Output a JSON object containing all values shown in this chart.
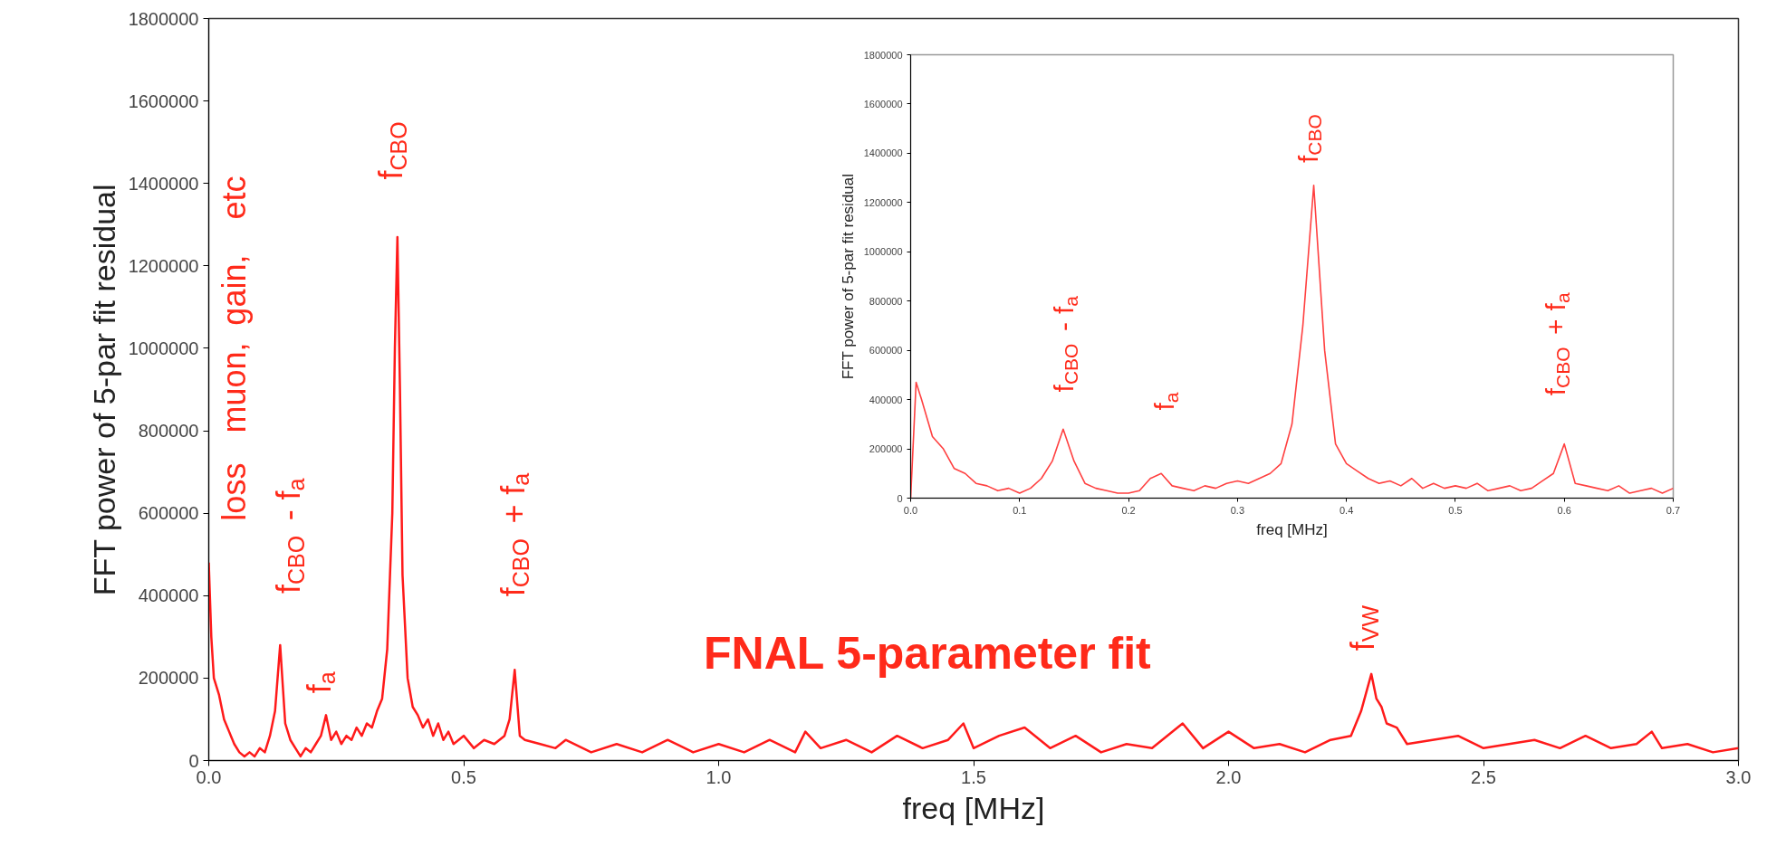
{
  "chart_data": [
    {
      "type": "line",
      "xlabel": "freq [MHz]",
      "ylabel": "FFT power of 5-par fit residual",
      "xlim": [
        0,
        3
      ],
      "ylim": [
        0,
        1800000
      ],
      "xticks": [
        {
          "value": 0,
          "label": "0.0"
        },
        0.5,
        {
          "value": 1,
          "label": "1.0"
        },
        1.5,
        {
          "value": 2,
          "label": "2.0"
        },
        2.5,
        {
          "value": 3,
          "label": "3.0"
        }
      ],
      "yticks": [
        0,
        200000,
        400000,
        600000,
        800000,
        1000000,
        1200000,
        1400000,
        1600000,
        1800000
      ],
      "grid": false,
      "line_style": "solid",
      "marker": "none",
      "series": [
        {
          "color": "#ff1a1a",
          "x": [
            0,
            0.005,
            0.01,
            0.02,
            0.03,
            0.04,
            0.05,
            0.06,
            0.07,
            0.08,
            0.09,
            0.1,
            0.11,
            0.12,
            0.13,
            0.14,
            0.15,
            0.16,
            0.17,
            0.18,
            0.19,
            0.2,
            0.21,
            0.22,
            0.23,
            0.24,
            0.25,
            0.26,
            0.27,
            0.28,
            0.29,
            0.3,
            0.31,
            0.32,
            0.33,
            0.34,
            0.35,
            0.36,
            0.365,
            0.37,
            0.375,
            0.38,
            0.39,
            0.4,
            0.41,
            0.42,
            0.43,
            0.44,
            0.45,
            0.46,
            0.47,
            0.48,
            0.5,
            0.52,
            0.54,
            0.56,
            0.58,
            0.59,
            0.6,
            0.61,
            0.62,
            0.65,
            0.68,
            0.7,
            0.75,
            0.8,
            0.85,
            0.9,
            0.95,
            1.0,
            1.05,
            1.1,
            1.15,
            1.17,
            1.2,
            1.25,
            1.3,
            1.35,
            1.4,
            1.45,
            1.48,
            1.5,
            1.55,
            1.6,
            1.65,
            1.7,
            1.75,
            1.8,
            1.85,
            1.9,
            1.91,
            1.95,
            2.0,
            2.05,
            2.1,
            2.15,
            2.2,
            2.24,
            2.26,
            2.28,
            2.29,
            2.3,
            2.31,
            2.33,
            2.35,
            2.4,
            2.45,
            2.5,
            2.55,
            2.6,
            2.65,
            2.7,
            2.75,
            2.8,
            2.83,
            2.85,
            2.9,
            2.95,
            3.0
          ],
          "values": [
            480000,
            300000,
            200000,
            160000,
            100000,
            70000,
            40000,
            20000,
            10000,
            20000,
            10000,
            30000,
            20000,
            60000,
            120000,
            280000,
            90000,
            50000,
            30000,
            10000,
            30000,
            20000,
            40000,
            60000,
            110000,
            50000,
            70000,
            40000,
            60000,
            50000,
            80000,
            60000,
            90000,
            80000,
            120000,
            150000,
            270000,
            600000,
            1000000,
            1270000,
            900000,
            450000,
            200000,
            130000,
            110000,
            80000,
            100000,
            60000,
            90000,
            50000,
            70000,
            40000,
            60000,
            30000,
            50000,
            40000,
            60000,
            100000,
            220000,
            60000,
            50000,
            40000,
            30000,
            50000,
            20000,
            40000,
            20000,
            50000,
            20000,
            40000,
            20000,
            50000,
            20000,
            70000,
            30000,
            50000,
            20000,
            60000,
            30000,
            50000,
            90000,
            30000,
            60000,
            80000,
            30000,
            60000,
            20000,
            40000,
            30000,
            80000,
            90000,
            30000,
            70000,
            30000,
            40000,
            20000,
            50000,
            60000,
            120000,
            210000,
            150000,
            130000,
            90000,
            80000,
            40000,
            50000,
            60000,
            30000,
            40000,
            50000,
            30000,
            60000,
            30000,
            40000,
            70000,
            30000,
            40000,
            20000,
            30000
          ]
        }
      ],
      "annotations": [
        "loss muon, gain, etc",
        "f$_{CBO}$ - f$_{a}$",
        "f$_{a}$",
        "f$_{CBO}$",
        "f$_{CBO}$ + f$_{a}$",
        "f$_{VW}$",
        "FNAL 5-parameter fit"
      ]
    },
    {
      "type": "line",
      "xlabel": "freq [MHz]",
      "ylabel": "FFT power of 5-par fit residual",
      "xlim": [
        0,
        0.7
      ],
      "ylim": [
        0,
        1800000
      ],
      "xticks": [
        {
          "value": 0,
          "label": "0.0"
        },
        0.1,
        0.2,
        0.3,
        0.4,
        0.5,
        0.6,
        0.7
      ],
      "yticks": [
        0,
        200000,
        400000,
        600000,
        800000,
        1000000,
        1200000,
        1400000,
        1600000,
        1800000
      ],
      "grid": false,
      "line_style": "solid",
      "marker": "none",
      "series": [
        {
          "color": "#ff4040",
          "x": [
            0,
            0.005,
            0.01,
            0.02,
            0.03,
            0.04,
            0.05,
            0.06,
            0.07,
            0.08,
            0.09,
            0.1,
            0.11,
            0.12,
            0.13,
            0.14,
            0.15,
            0.16,
            0.17,
            0.18,
            0.19,
            0.2,
            0.21,
            0.22,
            0.23,
            0.24,
            0.25,
            0.26,
            0.27,
            0.28,
            0.29,
            0.3,
            0.31,
            0.32,
            0.33,
            0.34,
            0.35,
            0.36,
            0.37,
            0.38,
            0.39,
            0.4,
            0.41,
            0.42,
            0.43,
            0.44,
            0.45,
            0.46,
            0.47,
            0.48,
            0.49,
            0.5,
            0.51,
            0.52,
            0.53,
            0.54,
            0.55,
            0.56,
            0.57,
            0.58,
            0.59,
            0.6,
            0.61,
            0.62,
            0.63,
            0.64,
            0.65,
            0.66,
            0.67,
            0.68,
            0.69,
            0.7
          ],
          "values": [
            0,
            470000,
            400000,
            250000,
            200000,
            120000,
            100000,
            60000,
            50000,
            30000,
            40000,
            20000,
            40000,
            80000,
            150000,
            280000,
            150000,
            60000,
            40000,
            30000,
            20000,
            20000,
            30000,
            80000,
            100000,
            50000,
            40000,
            30000,
            50000,
            40000,
            60000,
            70000,
            60000,
            80000,
            100000,
            140000,
            300000,
            700000,
            1270000,
            600000,
            220000,
            140000,
            110000,
            80000,
            60000,
            70000,
            50000,
            80000,
            40000,
            60000,
            40000,
            50000,
            40000,
            60000,
            30000,
            40000,
            50000,
            30000,
            40000,
            70000,
            100000,
            220000,
            60000,
            50000,
            40000,
            30000,
            50000,
            20000,
            30000,
            40000,
            20000,
            40000
          ]
        }
      ],
      "annotations": [
        "f$_{CBO}$ - f$_{a}$",
        "f$_{a}$",
        "f$_{CBO}$",
        "f$_{CBO}$ + f$_{a}$"
      ]
    }
  ]
}
